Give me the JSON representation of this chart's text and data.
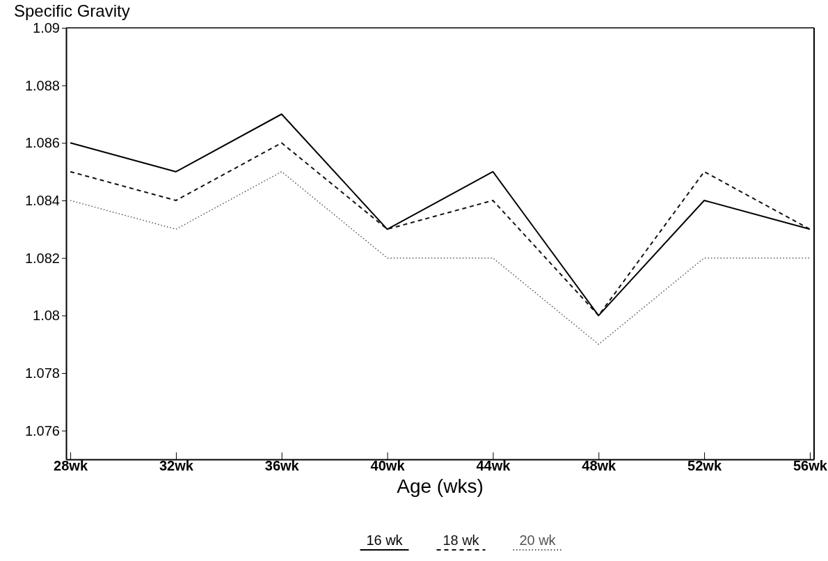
{
  "chart_data": {
    "type": "line",
    "ylabel": "Specific Gravity",
    "xlabel": "Age (wks)",
    "categories": [
      "28wk",
      "32wk",
      "36wk",
      "40wk",
      "44wk",
      "48wk",
      "52wk",
      "56wk"
    ],
    "ylim": [
      1.075,
      1.09
    ],
    "yticks": [
      1.076,
      1.078,
      1.08,
      1.082,
      1.084,
      1.086,
      1.088,
      1.09
    ],
    "legend": "bottom",
    "marker": "none",
    "series": [
      {
        "name": "16 wk",
        "color": "#000000",
        "line_style": "solid",
        "values": [
          1.086,
          1.085,
          1.087,
          1.083,
          1.085,
          1.08,
          1.084,
          1.083
        ]
      },
      {
        "name": "18 wk",
        "color": "#111111",
        "line_style": "dashed",
        "values": [
          1.085,
          1.084,
          1.086,
          1.083,
          1.084,
          1.08,
          1.085,
          1.083
        ]
      },
      {
        "name": "20 wk",
        "color": "#555555",
        "line_style": "dotted",
        "values": [
          1.084,
          1.083,
          1.085,
          1.082,
          1.082,
          1.079,
          1.082,
          1.082
        ]
      }
    ]
  }
}
